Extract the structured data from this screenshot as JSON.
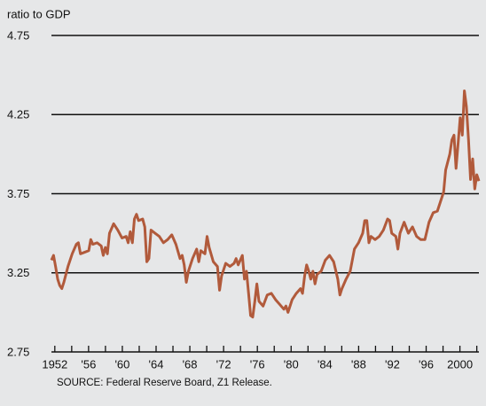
{
  "chart_data": {
    "type": "line",
    "ylabel": "ratio to GDP",
    "source": "SOURCE: Federal Reserve Board, Z1 Release.",
    "color": "#b15a3b",
    "xlim": [
      1951.6,
      2002.25
    ],
    "ylim": [
      2.75,
      4.75
    ],
    "yticks": [
      2.75,
      3.25,
      3.75,
      4.25,
      4.75
    ],
    "grid": true,
    "xticks": [
      1952,
      {
        "value": 1956,
        "label": "'56"
      },
      {
        "value": 1960,
        "label": "'60"
      },
      {
        "value": 1964,
        "label": "'64"
      },
      {
        "value": 1968,
        "label": "'68"
      },
      {
        "value": 1972,
        "label": "'72"
      },
      {
        "value": 1976,
        "label": "'76"
      },
      {
        "value": 1980,
        "label": "'80"
      },
      {
        "value": 1984,
        "label": "'84"
      },
      {
        "value": 1988,
        "label": "'88"
      },
      {
        "value": 1992,
        "label": "'92"
      },
      {
        "value": 1996,
        "label": "'96"
      },
      2000
    ],
    "xminorticks": [
      1954,
      1958,
      1962,
      1966,
      1970,
      1974,
      1978,
      1982,
      1986,
      1990,
      1994,
      1998,
      2002
    ],
    "x": [
      1951.6,
      1951.85,
      1952.09,
      1952.34,
      1952.58,
      1952.83,
      1953.07,
      1953.56,
      1954.06,
      1954.55,
      1954.79,
      1955.04,
      1955.53,
      1956.02,
      1956.26,
      1956.51,
      1957.0,
      1957.5,
      1957.74,
      1957.99,
      1958.23,
      1958.48,
      1958.97,
      1959.46,
      1959.96,
      1960.45,
      1960.69,
      1960.94,
      1961.19,
      1961.43,
      1961.68,
      1961.92,
      1962.41,
      1962.66,
      1962.9,
      1963.15,
      1963.4,
      1963.89,
      1964.38,
      1964.87,
      1965.37,
      1965.86,
      1966.35,
      1966.84,
      1967.09,
      1967.33,
      1967.58,
      1967.83,
      1968.32,
      1968.81,
      1969.06,
      1969.3,
      1969.79,
      1970.04,
      1970.29,
      1970.78,
      1971.27,
      1971.52,
      1971.76,
      1972.25,
      1972.75,
      1973.24,
      1973.48,
      1973.73,
      1974.22,
      1974.47,
      1974.71,
      1974.96,
      1975.2,
      1975.45,
      1975.7,
      1975.94,
      1976.19,
      1976.68,
      1977.17,
      1977.66,
      1978.16,
      1978.65,
      1979.14,
      1979.39,
      1979.63,
      1980.12,
      1980.61,
      1981.11,
      1981.35,
      1981.6,
      1981.84,
      1982.09,
      1982.33,
      1982.58,
      1982.83,
      1983.07,
      1983.56,
      1984.05,
      1984.55,
      1985.04,
      1985.53,
      1985.78,
      1986.02,
      1986.51,
      1987.0,
      1987.5,
      1987.99,
      1988.48,
      1988.72,
      1988.97,
      1989.22,
      1989.46,
      1989.95,
      1990.44,
      1990.93,
      1991.43,
      1991.67,
      1991.92,
      1992.41,
      1992.65,
      1992.9,
      1993.39,
      1993.89,
      1994.38,
      1994.87,
      1995.36,
      1995.85,
      1996.34,
      1996.84,
      1997.33,
      1997.82,
      1998.07,
      1998.31,
      1998.8,
      1999.05,
      1999.3,
      1999.54,
      1999.79,
      2000.03,
      2000.28,
      2000.53,
      2000.77,
      2001.02,
      2001.26,
      2001.51,
      2001.76,
      2002.0,
      2002.25
    ],
    "series": [
      {
        "values": [
          3.33,
          3.36,
          3.29,
          3.21,
          3.17,
          3.15,
          3.19,
          3.29,
          3.37,
          3.43,
          3.44,
          3.37,
          3.38,
          3.39,
          3.46,
          3.43,
          3.44,
          3.42,
          3.36,
          3.41,
          3.37,
          3.5,
          3.56,
          3.52,
          3.47,
          3.48,
          3.44,
          3.51,
          3.44,
          3.59,
          3.62,
          3.58,
          3.59,
          3.54,
          3.32,
          3.34,
          3.52,
          3.5,
          3.48,
          3.44,
          3.46,
          3.49,
          3.43,
          3.34,
          3.36,
          3.3,
          3.19,
          3.26,
          3.34,
          3.4,
          3.32,
          3.39,
          3.37,
          3.48,
          3.41,
          3.32,
          3.29,
          3.14,
          3.23,
          3.31,
          3.29,
          3.31,
          3.34,
          3.3,
          3.36,
          3.21,
          3.26,
          3.12,
          2.98,
          2.97,
          3.07,
          3.18,
          3.07,
          3.04,
          3.11,
          3.12,
          3.08,
          3.05,
          3.02,
          3.04,
          3.0,
          3.08,
          3.12,
          3.15,
          3.12,
          3.23,
          3.3,
          3.26,
          3.21,
          3.26,
          3.18,
          3.24,
          3.26,
          3.33,
          3.36,
          3.32,
          3.21,
          3.11,
          3.15,
          3.21,
          3.26,
          3.4,
          3.44,
          3.5,
          3.58,
          3.58,
          3.44,
          3.48,
          3.46,
          3.48,
          3.52,
          3.59,
          3.58,
          3.5,
          3.48,
          3.4,
          3.5,
          3.57,
          3.5,
          3.54,
          3.48,
          3.46,
          3.46,
          3.57,
          3.63,
          3.64,
          3.72,
          3.76,
          3.9,
          4.0,
          4.09,
          4.12,
          3.91,
          4.07,
          4.23,
          4.12,
          4.4,
          4.3,
          4.09,
          3.84,
          3.97,
          3.78,
          3.87,
          3.83
        ]
      }
    ]
  }
}
